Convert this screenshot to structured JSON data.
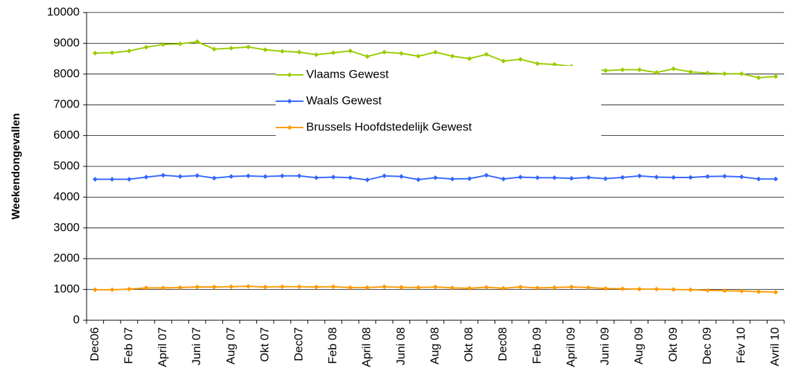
{
  "chart_data": {
    "type": "line",
    "y_label": "Weekendongevallen",
    "categories": [
      "Dec06",
      null,
      "Feb 07",
      null,
      "April 07",
      null,
      "Juni 07",
      null,
      "Aug 07",
      null,
      "Okt 07",
      null,
      "Dec07",
      null,
      "Feb 08",
      null,
      "April 08",
      null,
      "Juni 08",
      null,
      "Aug 08",
      null,
      "Okt 08",
      null,
      "Dec08",
      null,
      "Feb 09",
      null,
      "April 09",
      null,
      "Juni 09",
      null,
      "Aug 09",
      null,
      "Okt 09",
      null,
      "Dec 09",
      null,
      "Fév 10",
      null,
      "Avril 10"
    ],
    "series": [
      {
        "name": "Vlaams Gewest",
        "color": "#99cc00",
        "values": [
          8680,
          8690,
          8750,
          8870,
          8960,
          8980,
          9050,
          8810,
          8840,
          8880,
          8790,
          8740,
          8710,
          8630,
          8690,
          8750,
          8570,
          8710,
          8670,
          8580,
          8710,
          8580,
          8500,
          8640,
          8420,
          8480,
          8340,
          8310,
          8250,
          8180,
          8110,
          8140,
          8140,
          8050,
          8170,
          8070,
          8030,
          8010,
          8010,
          7880,
          7920
        ]
      },
      {
        "name": "Waals Gewest",
        "color": "#3366ff",
        "values": [
          4580,
          4580,
          4580,
          4650,
          4710,
          4670,
          4700,
          4620,
          4670,
          4690,
          4670,
          4690,
          4690,
          4630,
          4650,
          4630,
          4560,
          4690,
          4670,
          4570,
          4630,
          4590,
          4600,
          4710,
          4590,
          4650,
          4630,
          4630,
          4610,
          4640,
          4600,
          4640,
          4690,
          4650,
          4640,
          4640,
          4670,
          4680,
          4660,
          4590,
          4590
        ]
      },
      {
        "name": "Brussels Hoofdstedelijk Gewest",
        "color": "#ff9900",
        "values": [
          990,
          990,
          1010,
          1050,
          1050,
          1060,
          1080,
          1080,
          1090,
          1100,
          1080,
          1090,
          1090,
          1080,
          1090,
          1060,
          1060,
          1090,
          1070,
          1060,
          1080,
          1050,
          1040,
          1070,
          1040,
          1080,
          1050,
          1060,
          1080,
          1060,
          1030,
          1020,
          1010,
          1010,
          1000,
          990,
          970,
          960,
          950,
          930,
          910
        ]
      }
    ],
    "ylim": [
      0,
      10000
    ],
    "yticks": [
      0,
      1000,
      2000,
      3000,
      4000,
      5000,
      6000,
      7000,
      8000,
      9000,
      10000
    ],
    "grid": true,
    "legend": "top"
  }
}
